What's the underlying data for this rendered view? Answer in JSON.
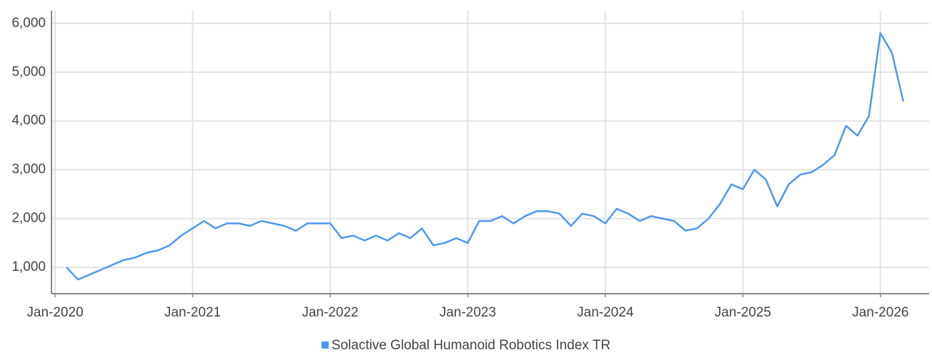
{
  "chart_data": {
    "type": "line",
    "x": [
      "2020-02",
      "2020-03",
      "2020-04",
      "2020-05",
      "2020-06",
      "2020-07",
      "2020-08",
      "2020-09",
      "2020-10",
      "2020-11",
      "2020-12",
      "2021-01",
      "2021-02",
      "2021-03",
      "2021-04",
      "2021-05",
      "2021-06",
      "2021-07",
      "2021-08",
      "2021-09",
      "2021-10",
      "2021-11",
      "2021-12",
      "2022-01",
      "2022-02",
      "2022-03",
      "2022-04",
      "2022-05",
      "2022-06",
      "2022-07",
      "2022-08",
      "2022-09",
      "2022-10",
      "2022-11",
      "2022-12",
      "2023-01",
      "2023-02",
      "2023-03",
      "2023-04",
      "2023-05",
      "2023-06",
      "2023-07",
      "2023-08",
      "2023-09",
      "2023-10",
      "2023-11",
      "2023-12",
      "2024-01",
      "2024-02",
      "2024-03",
      "2024-04",
      "2024-05",
      "2024-06",
      "2024-07",
      "2024-08",
      "2024-09",
      "2024-10",
      "2024-11",
      "2024-12",
      "2025-01",
      "2025-02",
      "2025-03",
      "2025-04",
      "2025-05",
      "2025-06",
      "2025-07",
      "2025-08",
      "2025-09",
      "2025-10",
      "2025-11",
      "2025-12",
      "2026-01",
      "2026-02",
      "2026-03"
    ],
    "series": [
      {
        "name": "Solactive Global Humanoid Robotics Index TR",
        "color": "#4f97f0",
        "values": [
          1000,
          750,
          850,
          950,
          1050,
          1150,
          1200,
          1300,
          1350,
          1450,
          1650,
          1800,
          1950,
          1800,
          1900,
          1900,
          1850,
          1950,
          1900,
          1850,
          1750,
          1900,
          1900,
          1900,
          1600,
          1650,
          1550,
          1650,
          1550,
          1700,
          1600,
          1800,
          1450,
          1500,
          1600,
          1500,
          1950,
          1950,
          2050,
          1900,
          2050,
          2150,
          2150,
          2100,
          1850,
          2100,
          2050,
          1900,
          2200,
          2100,
          1950,
          2050,
          2000,
          1950,
          1750,
          1800,
          2000,
          2300,
          2700,
          2600,
          3000,
          2800,
          2250,
          2700,
          2900,
          2950,
          3100,
          3300,
          3900,
          3700,
          4100,
          5800,
          5400,
          4400
        ]
      }
    ],
    "xlim": [
      "2019-12",
      "2026-05"
    ],
    "xticks": [
      {
        "value": "2020-01",
        "label": "Jan-2020"
      },
      {
        "value": "2021-01",
        "label": "Jan-2021"
      },
      {
        "value": "2022-01",
        "label": "Jan-2022"
      },
      {
        "value": "2023-01",
        "label": "Jan-2023"
      },
      {
        "value": "2024-01",
        "label": "Jan-2024"
      },
      {
        "value": "2025-01",
        "label": "Jan-2025"
      },
      {
        "value": "2026-01",
        "label": "Jan-2026"
      }
    ],
    "ylim": [
      460,
      6260
    ],
    "yticks": [
      {
        "value": 1000,
        "label": "1,000"
      },
      {
        "value": 2000,
        "label": "2,000"
      },
      {
        "value": 3000,
        "label": "3,000"
      },
      {
        "value": 4000,
        "label": "4,000"
      },
      {
        "value": 5000,
        "label": "5,000"
      },
      {
        "value": 6000,
        "label": "6,000"
      }
    ],
    "grid": true,
    "legend": "bottom"
  }
}
